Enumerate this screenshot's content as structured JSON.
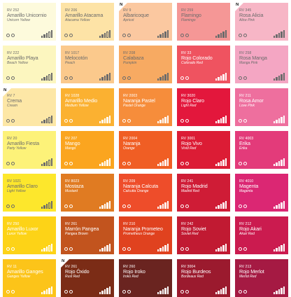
{
  "swatches": [
    {
      "code": "RV 252",
      "name": "Amarillo Unicornio",
      "alt": "Unicorn Yellow",
      "color": "#fdfadc",
      "fg": "#6b6b6b",
      "new": false,
      "opacity_level": 2
    },
    {
      "code": "RV 206",
      "name": "Amarillo Atacama",
      "alt": "Atacama Yellow",
      "color": "#fde3a6",
      "fg": "#6b6b6b",
      "new": false,
      "opacity_level": 3
    },
    {
      "code": "RV 9",
      "name": "Albaricoque",
      "alt": "Apricot",
      "color": "#fbc8a0",
      "fg": "#6b6b6b",
      "new": true,
      "new_label": "N",
      "opacity_level": 5
    },
    {
      "code": "RV 259",
      "name": "Flamingo",
      "alt": "Flamingo",
      "color": "#f59796",
      "fg": "#6b6b6b",
      "new": false,
      "opacity_level": 5
    },
    {
      "code": "RV 345",
      "name": "Rosa Alicia",
      "alt": "Alice Pink",
      "color": "#f7b6c6",
      "fg": "#6b6b6b",
      "new": true,
      "new_label": "N",
      "opacity_level": 4
    },
    {
      "code": "RV 222",
      "name": "Amarillo Playa",
      "alt": "Beach Yellow",
      "color": "#fcf6bf",
      "fg": "#6b6b6b",
      "new": false,
      "opacity_level": 3
    },
    {
      "code": "RV 1017",
      "name": "Melocotón",
      "alt": "Peach",
      "color": "#fbc98c",
      "fg": "#6b6b6b",
      "new": false,
      "opacity_level": 4
    },
    {
      "code": "RV 208",
      "name": "Calabaza",
      "alt": "Pumpkin",
      "color": "#f7aa62",
      "fg": "#6b6b6b",
      "new": false,
      "opacity_level": 5
    },
    {
      "code": "RV 33",
      "name": "Rojo Colorado",
      "alt": "Colorado Red",
      "color": "#ef5360",
      "fg": "#ffffff",
      "new": false,
      "opacity_level": 5
    },
    {
      "code": "RV 258",
      "name": "Rosa Manga",
      "alt": "Manga Pink",
      "color": "#f4a6c3",
      "fg": "#6b6b6b",
      "new": false,
      "opacity_level": 5
    },
    {
      "code": "RV 7",
      "name": "Crema",
      "alt": "Cream",
      "color": "#fde7a6",
      "fg": "#6b6b6b",
      "new": true,
      "new_label": "N",
      "opacity_level": 3
    },
    {
      "code": "RV 1028",
      "name": "Amarillo Medio",
      "alt": "Medium Yellow",
      "color": "#fbb131",
      "fg": "#ffffff",
      "new": false,
      "opacity_level": 5
    },
    {
      "code": "RV 2003",
      "name": "Naranja Pastel",
      "alt": "Pastel Orange",
      "color": "#f68d3b",
      "fg": "#ffffff",
      "new": false,
      "opacity_level": 5
    },
    {
      "code": "RV 3020",
      "name": "Rojo Claro",
      "alt": "Light Red",
      "color": "#e3173c",
      "fg": "#ffffff",
      "new": false,
      "opacity_level": 5
    },
    {
      "code": "RV 211",
      "name": "Rosa Amor",
      "alt": "Love Pink",
      "color": "#ee6f9e",
      "fg": "#ffffff",
      "new": false,
      "opacity_level": 5
    },
    {
      "code": "RV 20",
      "name": "Amarillo Fiesta",
      "alt": "Party Yellow",
      "color": "#fdf279",
      "fg": "#6b6b6b",
      "new": false,
      "opacity_level": 2
    },
    {
      "code": "RV 207",
      "name": "Mango",
      "alt": "Mango",
      "color": "#fba51f",
      "fg": "#ffffff",
      "new": false,
      "opacity_level": 5
    },
    {
      "code": "RV 2004",
      "name": "Naranja",
      "alt": "Orange",
      "color": "#f05e24",
      "fg": "#ffffff",
      "new": false,
      "opacity_level": 5
    },
    {
      "code": "RV 3001",
      "name": "Rojo Vivo",
      "alt": "Vivid Red",
      "color": "#dc1c35",
      "fg": "#ffffff",
      "new": false,
      "opacity_level": 5
    },
    {
      "code": "RV 4003",
      "name": "Erika",
      "alt": "Erika",
      "color": "#e33b7a",
      "fg": "#ffffff",
      "new": false,
      "opacity_level": 5
    },
    {
      "code": "RV 1021",
      "name": "Amarillo Claro",
      "alt": "Light Yellow",
      "color": "#fde72c",
      "fg": "#6b6b6b",
      "new": false,
      "opacity_level": 2
    },
    {
      "code": "RV 8023",
      "name": "Mostaza",
      "alt": "Mustard",
      "color": "#e07b22",
      "fg": "#ffffff",
      "new": false,
      "opacity_level": 5
    },
    {
      "code": "RV 209",
      "name": "Naranja Calcuta",
      "alt": "Calcutta Orange",
      "color": "#ee4d2a",
      "fg": "#ffffff",
      "new": false,
      "opacity_level": 5
    },
    {
      "code": "RV 241",
      "name": "Rojo Madrid",
      "alt": "Madrid Red",
      "color": "#cf1c36",
      "fg": "#ffffff",
      "new": false,
      "opacity_level": 5
    },
    {
      "code": "RV 4010",
      "name": "Magenta",
      "alt": "Magenta",
      "color": "#db2773",
      "fg": "#ffffff",
      "new": false,
      "opacity_level": 5
    },
    {
      "code": "RV 250",
      "name": "Amarillo Luxor",
      "alt": "Luxor Yellow",
      "color": "#fdd317",
      "fg": "#ffffff",
      "new": false,
      "opacity_level": 3
    },
    {
      "code": "RV 261",
      "name": "Marrón Pangea",
      "alt": "Pangea Brown",
      "color": "#c2541e",
      "fg": "#ffffff",
      "new": false,
      "opacity_level": 5
    },
    {
      "code": "RV 210",
      "name": "Naranja Prometeo",
      "alt": "Prometheus Orange",
      "color": "#e0421f",
      "fg": "#ffffff",
      "new": false,
      "opacity_level": 5
    },
    {
      "code": "RV 242",
      "name": "Rojo Soviet",
      "alt": "Soviet Red",
      "color": "#c11a32",
      "fg": "#ffffff",
      "new": false,
      "opacity_level": 5
    },
    {
      "code": "RV 212",
      "name": "Rojo Akari",
      "alt": "Akari Red",
      "color": "#cb1b4f",
      "fg": "#ffffff",
      "new": false,
      "opacity_level": 5
    },
    {
      "code": "RV 11",
      "name": "Amarillo Ganges",
      "alt": "Ganges Yellow",
      "color": "#fcc419",
      "fg": "#ffffff",
      "new": false,
      "opacity_level": 4
    },
    {
      "code": "RV 261",
      "name": "Rojo Óxido",
      "alt": "Rust Red",
      "color": "#7b2c16",
      "fg": "#ffffff",
      "new": true,
      "new_label": "N",
      "opacity_level": 5
    },
    {
      "code": "RV 260",
      "name": "Rojo Iroko",
      "alt": "Iroko Red",
      "color": "#6a2420",
      "fg": "#ffffff",
      "new": false,
      "opacity_level": 5
    },
    {
      "code": "RV 3004",
      "name": "Rojo Burdeos",
      "alt": "Bordeaux Red",
      "color": "#9b1a2e",
      "fg": "#ffffff",
      "new": false,
      "opacity_level": 5
    },
    {
      "code": "RV 213",
      "name": "Rojo Merlot",
      "alt": "Merlot Red",
      "color": "#a51a43",
      "fg": "#ffffff",
      "new": false,
      "opacity_level": 5
    }
  ]
}
